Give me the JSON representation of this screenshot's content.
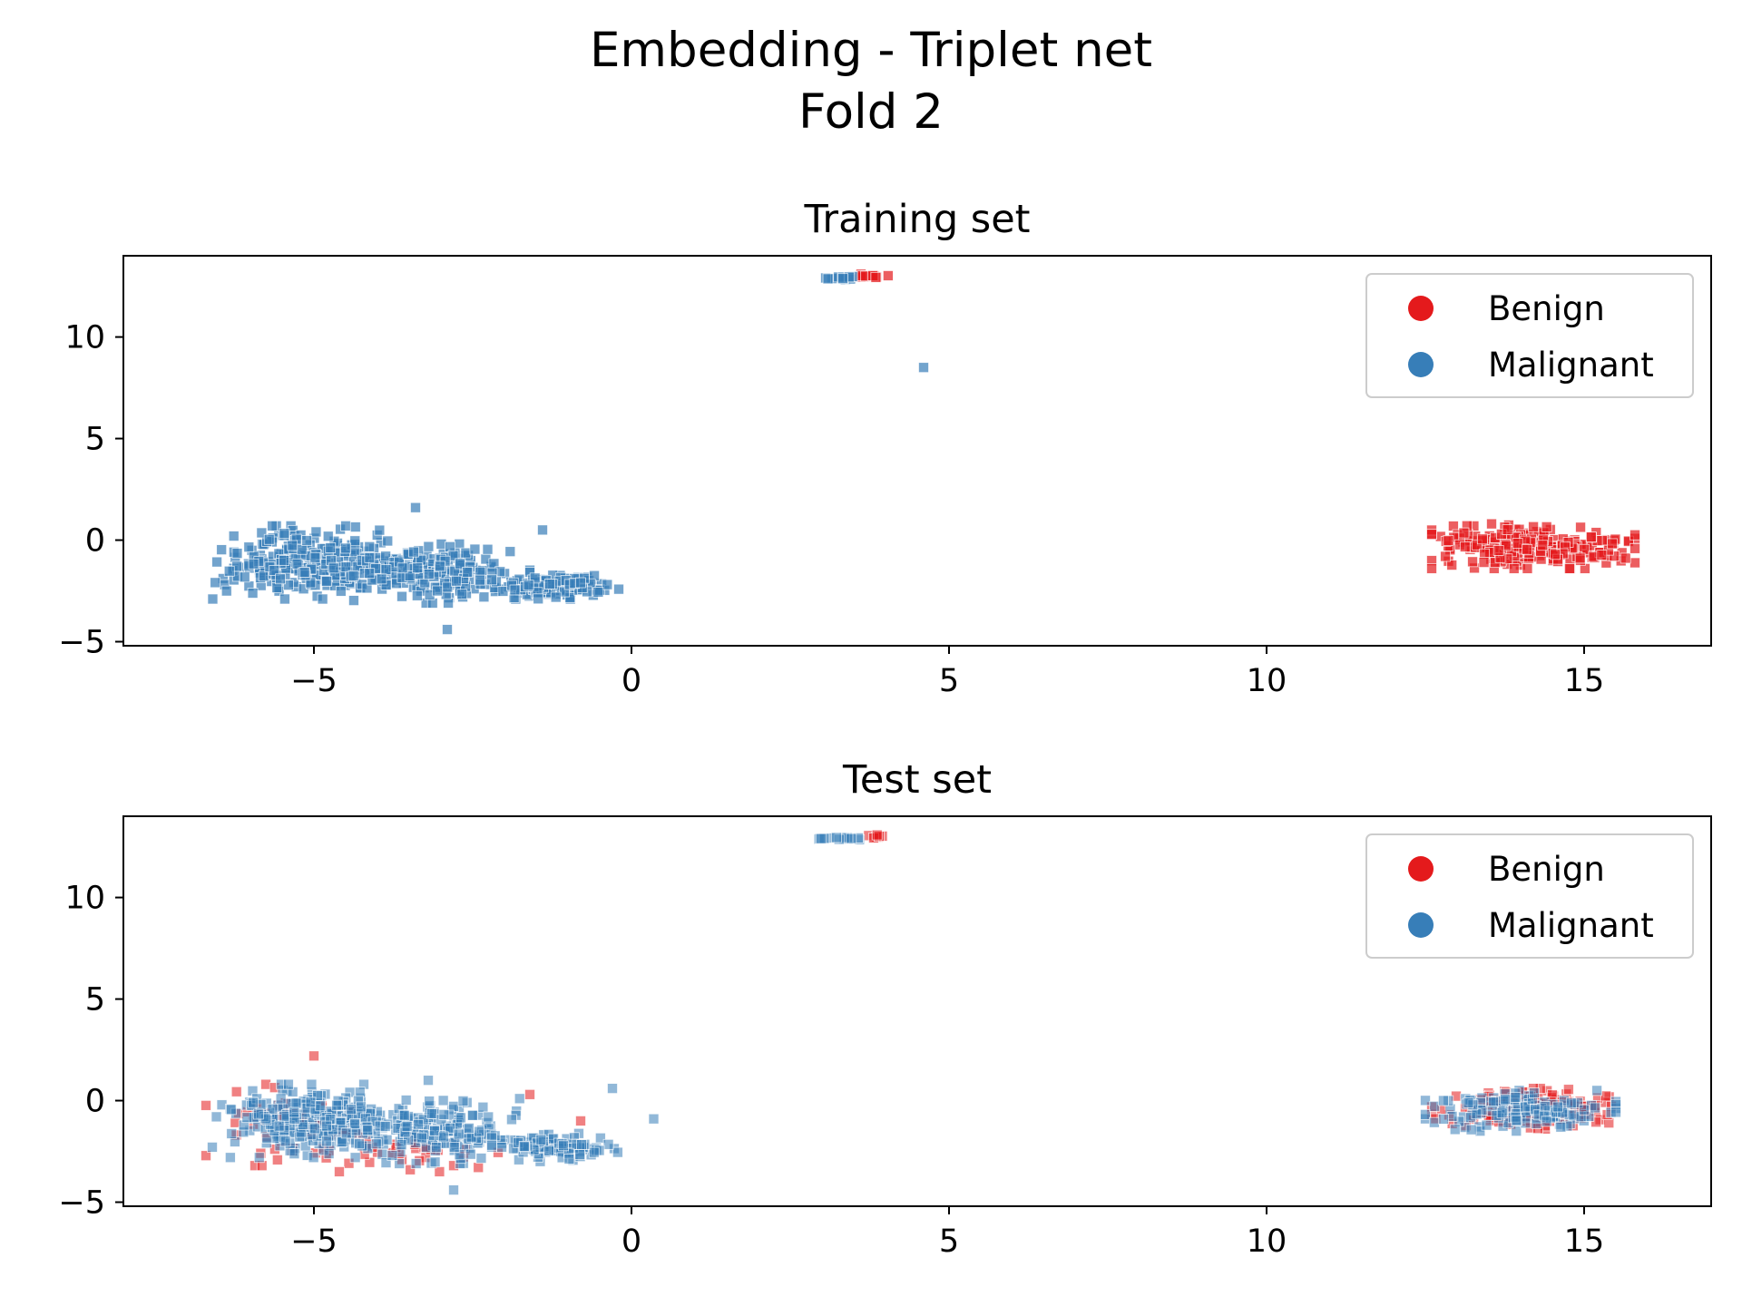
{
  "figure": {
    "suptitle_line1": "Embedding - Triplet net",
    "suptitle_line2": "Fold 2"
  },
  "chart_data": [
    {
      "type": "scatter",
      "title": "Training set",
      "xlabel": "",
      "ylabel": "",
      "xlim": [
        -8,
        17
      ],
      "ylim": [
        -5.2,
        14
      ],
      "xticks": [
        -5,
        0,
        5,
        10,
        15
      ],
      "xtick_labels": [
        "−5",
        "0",
        "5",
        "10",
        "15"
      ],
      "yticks": [
        -5,
        0,
        5,
        10
      ],
      "ytick_labels": [
        "−5",
        "0",
        "5",
        "10"
      ],
      "grid": false,
      "legend_position": "top-right",
      "series": [
        {
          "name": "Benign",
          "color": "#e41a1c",
          "marker": "square",
          "alpha": 0.7,
          "clusters": [
            {
              "cx": 14.2,
              "cy": -0.3,
              "rx": 1.6,
              "ry": 1.1,
              "n": 260
            },
            {
              "cx": 3.75,
              "cy": 13.0,
              "rx": 0.3,
              "ry": 0.1,
              "n": 12
            }
          ],
          "points": []
        },
        {
          "name": "Malignant",
          "color": "#377eb8",
          "marker": "square",
          "alpha": 0.7,
          "clusters": [
            {
              "cx": -5.2,
              "cy": -1.1,
              "rx": 1.5,
              "ry": 1.8,
              "n": 260
            },
            {
              "cx": -3.2,
              "cy": -1.6,
              "rx": 1.6,
              "ry": 1.5,
              "n": 200
            },
            {
              "cx": -1.2,
              "cy": -2.3,
              "rx": 1.0,
              "ry": 0.6,
              "n": 120
            },
            {
              "cx": 3.3,
              "cy": 12.9,
              "rx": 0.35,
              "ry": 0.12,
              "n": 14
            }
          ],
          "points": [
            [
              4.6,
              8.5
            ],
            [
              -2.9,
              -4.4
            ],
            [
              -1.4,
              0.5
            ],
            [
              -3.4,
              1.6
            ]
          ]
        }
      ]
    },
    {
      "type": "scatter",
      "title": "Test set",
      "xlabel": "",
      "ylabel": "",
      "xlim": [
        -8,
        17
      ],
      "ylim": [
        -5.2,
        14
      ],
      "xticks": [
        -5,
        0,
        5,
        10,
        15
      ],
      "xtick_labels": [
        "−5",
        "0",
        "5",
        "10",
        "15"
      ],
      "yticks": [
        -5,
        0,
        5,
        10
      ],
      "ytick_labels": [
        "−5",
        "0",
        "5",
        "10"
      ],
      "grid": false,
      "legend_position": "top-right",
      "series": [
        {
          "name": "Benign",
          "color": "#e41a1c",
          "marker": "square",
          "alpha": 0.55,
          "clusters": [
            {
              "cx": -5.2,
              "cy": -1.2,
              "rx": 1.5,
              "ry": 2.0,
              "n": 60
            },
            {
              "cx": -3.5,
              "cy": -2.5,
              "rx": 1.4,
              "ry": 1.0,
              "n": 30
            },
            {
              "cx": 14.2,
              "cy": -0.4,
              "rx": 1.6,
              "ry": 1.0,
              "n": 160
            },
            {
              "cx": 3.8,
              "cy": 13.0,
              "rx": 0.25,
              "ry": 0.1,
              "n": 8
            }
          ],
          "points": [
            [
              -1.6,
              0.3
            ],
            [
              -0.8,
              -1.0
            ],
            [
              -5.0,
              2.2
            ],
            [
              -4.6,
              -3.5
            ],
            [
              -2.8,
              -3.2
            ]
          ]
        },
        {
          "name": "Malignant",
          "color": "#377eb8",
          "marker": "square",
          "alpha": 0.55,
          "clusters": [
            {
              "cx": -5.1,
              "cy": -1.0,
              "rx": 1.5,
              "ry": 1.8,
              "n": 240
            },
            {
              "cx": -3.2,
              "cy": -1.5,
              "rx": 1.6,
              "ry": 1.6,
              "n": 180
            },
            {
              "cx": -1.2,
              "cy": -2.3,
              "rx": 1.0,
              "ry": 0.7,
              "n": 110
            },
            {
              "cx": 14.0,
              "cy": -0.5,
              "rx": 1.5,
              "ry": 1.0,
              "n": 140
            },
            {
              "cx": 3.3,
              "cy": 12.9,
              "rx": 0.35,
              "ry": 0.12,
              "n": 14
            }
          ],
          "points": [
            [
              0.35,
              -0.9
            ],
            [
              -0.3,
              0.6
            ],
            [
              -3.2,
              1.0
            ],
            [
              -2.8,
              -4.4
            ]
          ]
        }
      ]
    }
  ]
}
